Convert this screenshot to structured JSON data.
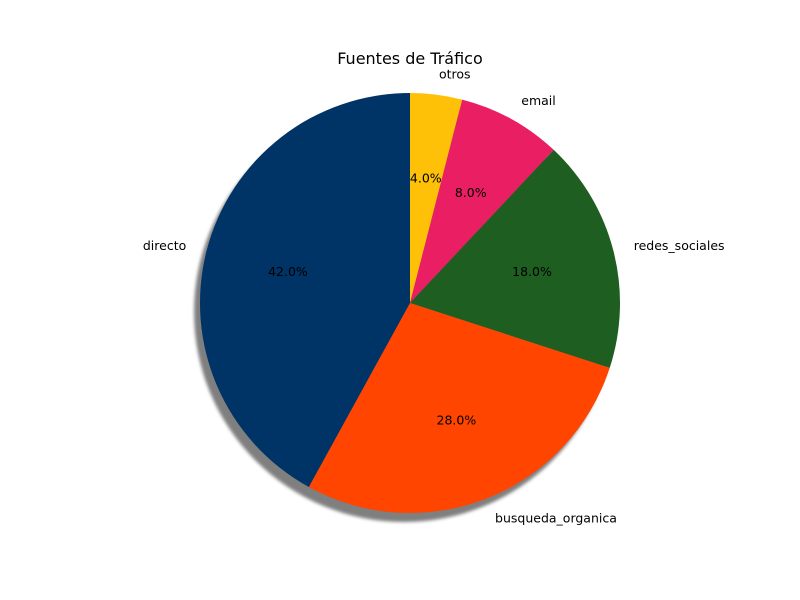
{
  "chart_data": {
    "type": "pie",
    "title": "Fuentes de Tráfico",
    "start_angle_deg": 90,
    "direction": "clockwise",
    "shadow": true,
    "slices": [
      {
        "label": "otros",
        "value": 4.0,
        "pct_label": "4.0%",
        "color": "#FFC107"
      },
      {
        "label": "email",
        "value": 8.0,
        "pct_label": "8.0%",
        "color": "#E91E63"
      },
      {
        "label": "redes_sociales",
        "value": 18.0,
        "pct_label": "18.0%",
        "color": "#1E5E20"
      },
      {
        "label": "busqueda_organica",
        "value": 28.0,
        "pct_label": "28.0%",
        "color": "#FF4500"
      },
      {
        "label": "directo",
        "value": 42.0,
        "pct_label": "42.0%",
        "color": "#003366"
      }
    ]
  }
}
